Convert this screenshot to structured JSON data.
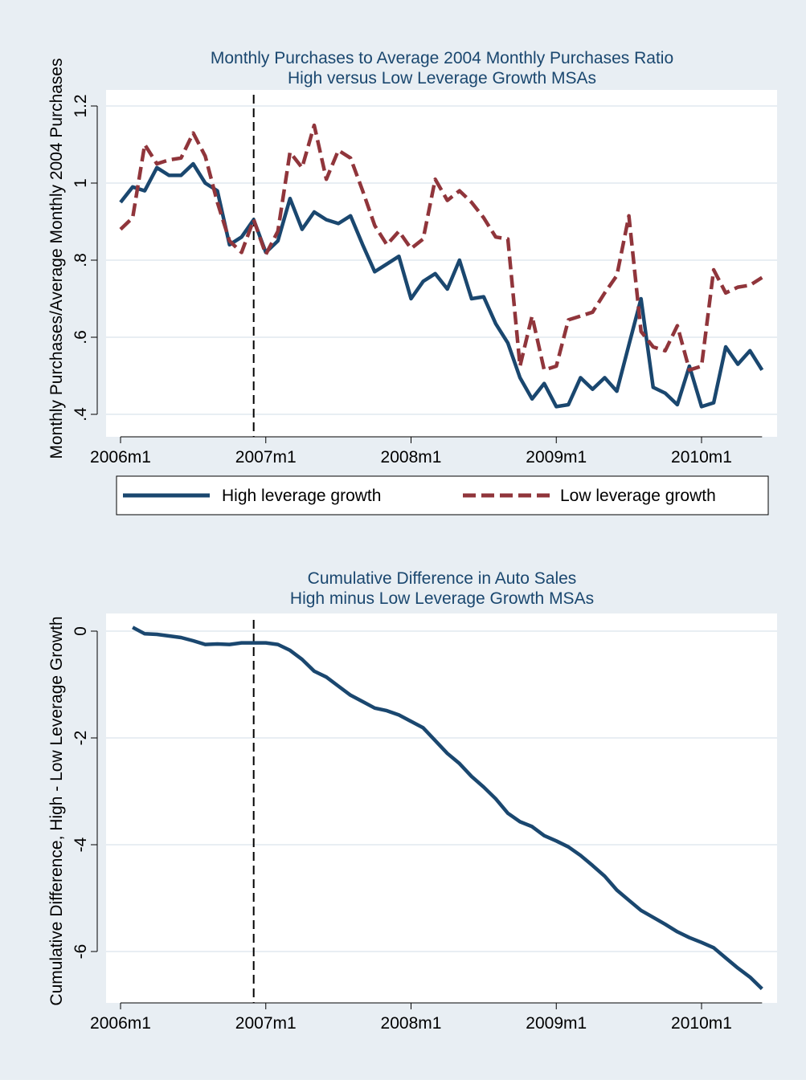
{
  "colors": {
    "page_bg": "#e8eef3",
    "plot_bg": "#ffffff",
    "grid": "#e8eef3",
    "high_line": "#1a476f",
    "low_line": "#90353b",
    "vline": "#000000",
    "title": "#1a476f",
    "axis": "#000000"
  },
  "chart_data": [
    {
      "type": "line",
      "title": "Monthly Purchases to Average 2004 Monthly Purchases Ratio",
      "subtitle": "High versus Low Leverage Growth MSAs",
      "xlabel": "",
      "ylabel": "Monthly Purchases/Average Monthly 2004 Purchases",
      "x_unit": "months since 2006m1",
      "xlim": [
        0,
        53
      ],
      "ylim": [
        0.4,
        1.2
      ],
      "x_ticks": [
        0,
        12,
        24,
        36,
        48
      ],
      "x_tick_labels": [
        "2006m1",
        "2007m1",
        "2008m1",
        "2009m1",
        "2010m1"
      ],
      "y_ticks": [
        0.4,
        0.6,
        0.8,
        1.0,
        1.2
      ],
      "y_tick_labels": [
        ".4",
        ".6",
        ".8",
        "1",
        "1.2"
      ],
      "vline_x": 11,
      "grid": true,
      "legend_position": "bottom",
      "series": [
        {
          "name": "High leverage growth",
          "style": "solid",
          "x": [
            0,
            1,
            2,
            3,
            4,
            5,
            6,
            7,
            8,
            9,
            10,
            11,
            12,
            13,
            14,
            15,
            16,
            17,
            18,
            19,
            20,
            21,
            22,
            23,
            24,
            25,
            26,
            27,
            28,
            29,
            30,
            31,
            32,
            33,
            34,
            35,
            36,
            37,
            38,
            39,
            40,
            41,
            42,
            43,
            44,
            45,
            46,
            47,
            48,
            49,
            50,
            51,
            52,
            53
          ],
          "values": [
            0.95,
            0.99,
            0.98,
            1.04,
            1.02,
            1.02,
            1.05,
            1.0,
            0.98,
            0.84,
            0.86,
            0.905,
            0.82,
            0.85,
            0.96,
            0.88,
            0.925,
            0.905,
            0.895,
            0.915,
            0.84,
            0.77,
            0.79,
            0.81,
            0.7,
            0.745,
            0.765,
            0.725,
            0.8,
            0.7,
            0.705,
            0.635,
            0.585,
            0.495,
            0.44,
            0.48,
            0.42,
            0.425,
            0.495,
            0.465,
            0.495,
            0.46,
            0.58,
            0.7,
            0.47,
            0.455,
            0.425,
            0.525,
            0.42,
            0.43,
            0.575,
            0.53,
            0.565,
            0.515
          ]
        },
        {
          "name": "Low leverage growth",
          "style": "dash",
          "x": [
            0,
            1,
            2,
            3,
            4,
            5,
            6,
            7,
            8,
            9,
            10,
            11,
            12,
            13,
            14,
            15,
            16,
            17,
            18,
            19,
            20,
            21,
            22,
            23,
            24,
            25,
            26,
            27,
            28,
            29,
            30,
            31,
            32,
            33,
            34,
            35,
            36,
            37,
            38,
            39,
            40,
            41,
            42,
            43,
            44,
            45,
            46,
            47,
            48,
            49,
            50,
            51,
            52,
            53
          ],
          "values": [
            0.88,
            0.91,
            1.1,
            1.05,
            1.06,
            1.065,
            1.13,
            1.07,
            0.95,
            0.85,
            0.82,
            0.905,
            0.815,
            0.875,
            1.08,
            1.04,
            1.15,
            1.01,
            1.085,
            1.065,
            0.98,
            0.89,
            0.84,
            0.875,
            0.83,
            0.855,
            1.01,
            0.955,
            0.98,
            0.95,
            0.91,
            0.86,
            0.855,
            0.525,
            0.655,
            0.515,
            0.525,
            0.645,
            0.655,
            0.665,
            0.715,
            0.76,
            0.915,
            0.615,
            0.575,
            0.565,
            0.63,
            0.515,
            0.525,
            0.775,
            0.715,
            0.73,
            0.735,
            0.755
          ]
        }
      ]
    },
    {
      "type": "line",
      "title": "Cumulative Difference in Auto Sales",
      "subtitle": "High minus Low Leverage Growth MSAs",
      "xlabel": "",
      "ylabel": "Cumulative Difference, High - Low Leverage Growth",
      "x_unit": "months since 2006m1",
      "xlim": [
        0,
        53
      ],
      "ylim": [
        -7,
        0.3
      ],
      "x_ticks": [
        0,
        12,
        24,
        36,
        48
      ],
      "x_tick_labels": [
        "2006m1",
        "2007m1",
        "2008m1",
        "2009m1",
        "2010m1"
      ],
      "y_ticks": [
        0,
        -2,
        -4,
        -6
      ],
      "y_tick_labels": [
        "0",
        "-2",
        "-4",
        "-6"
      ],
      "vline_x": 11,
      "grid": true,
      "series": [
        {
          "style": "solid",
          "x": [
            1,
            2,
            3,
            4,
            5,
            6,
            7,
            8,
            9,
            10,
            11,
            12,
            13,
            14,
            15,
            16,
            17,
            18,
            19,
            20,
            21,
            22,
            23,
            24,
            25,
            26,
            27,
            28,
            29,
            30,
            31,
            32,
            33,
            34,
            35,
            36,
            37,
            38,
            39,
            40,
            41,
            42,
            43,
            44,
            45,
            46,
            47,
            48,
            49,
            50,
            51,
            52,
            53
          ],
          "values": [
            0.07,
            -0.05,
            -0.06,
            -0.09,
            -0.12,
            -0.18,
            -0.25,
            -0.24,
            -0.25,
            -0.22,
            -0.22,
            -0.22,
            -0.25,
            -0.36,
            -0.53,
            -0.75,
            -0.86,
            -1.03,
            -1.2,
            -1.32,
            -1.44,
            -1.49,
            -1.57,
            -1.69,
            -1.81,
            -2.05,
            -2.29,
            -2.48,
            -2.72,
            -2.92,
            -3.14,
            -3.41,
            -3.57,
            -3.66,
            -3.83,
            -3.93,
            -4.04,
            -4.2,
            -4.39,
            -4.59,
            -4.85,
            -5.04,
            -5.23,
            -5.36,
            -5.49,
            -5.63,
            -5.74,
            -5.83,
            -5.93,
            -6.12,
            -6.31,
            -6.48,
            -6.7
          ]
        }
      ]
    }
  ]
}
